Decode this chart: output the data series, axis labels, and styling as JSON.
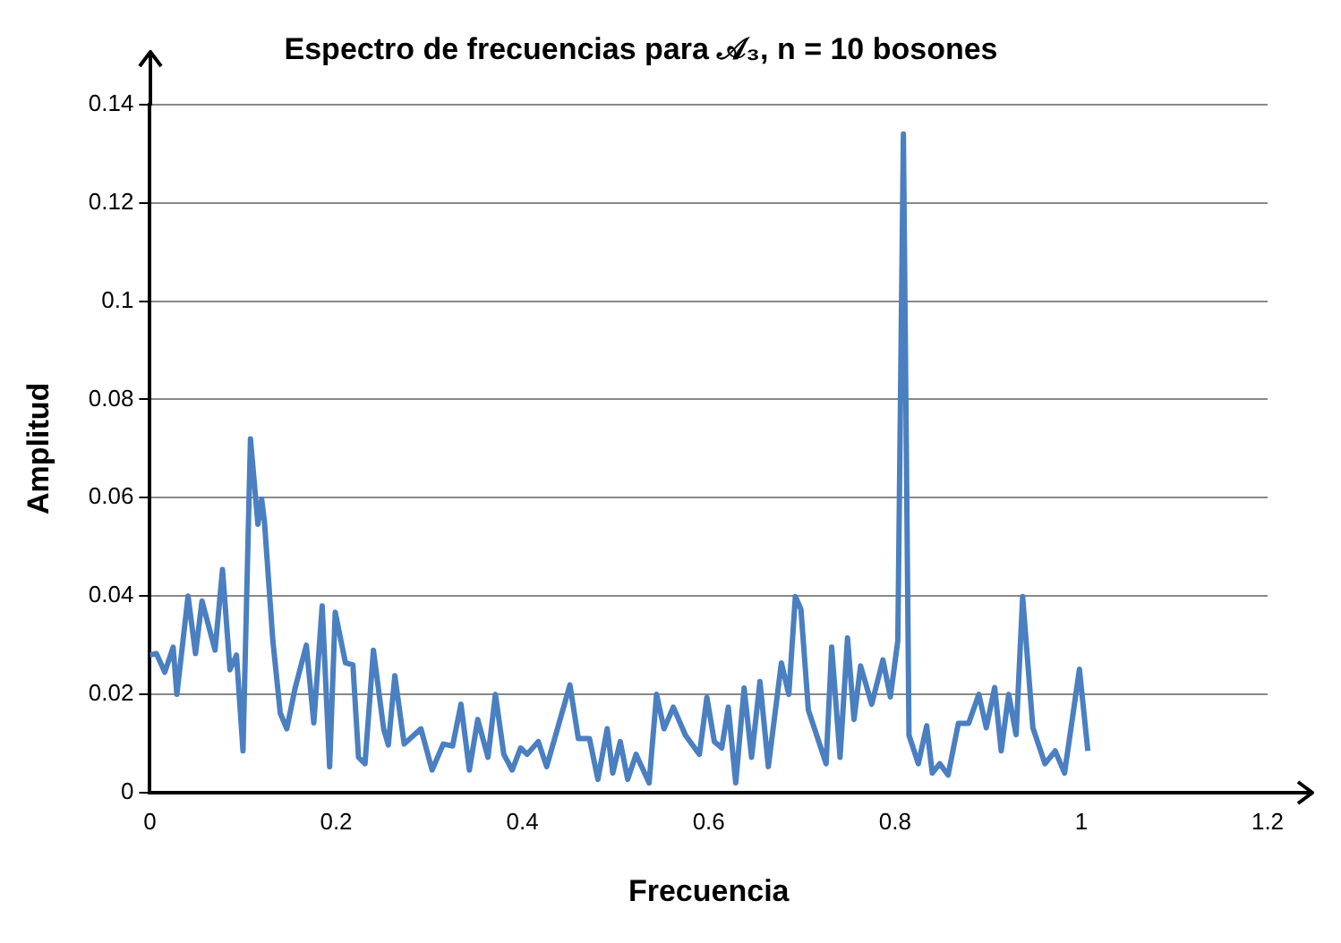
{
  "chart_data": {
    "type": "line",
    "title": "Espectro de frecuencias para 𝒜₃, n = 10 bosones",
    "xlabel": "Frecuencia",
    "ylabel": "Amplitud",
    "x": [
      0,
      0.007,
      0.016,
      0.025,
      0.029,
      0.041,
      0.049,
      0.056,
      0.07,
      0.078,
      0.086,
      0.093,
      0.1,
      0.108,
      0.116,
      0.12,
      0.123,
      0.132,
      0.14,
      0.147,
      0.156,
      0.168,
      0.176,
      0.185,
      0.193,
      0.199,
      0.21,
      0.218,
      0.224,
      0.231,
      0.24,
      0.251,
      0.256,
      0.263,
      0.273,
      0.291,
      0.303,
      0.315,
      0.325,
      0.334,
      0.343,
      0.352,
      0.363,
      0.371,
      0.38,
      0.389,
      0.398,
      0.405,
      0.417,
      0.426,
      0.451,
      0.46,
      0.472,
      0.481,
      0.491,
      0.497,
      0.505,
      0.513,
      0.522,
      0.536,
      0.544,
      0.552,
      0.562,
      0.575,
      0.59,
      0.598,
      0.606,
      0.614,
      0.621,
      0.629,
      0.638,
      0.646,
      0.655,
      0.664,
      0.678,
      0.686,
      0.693,
      0.699,
      0.707,
      0.726,
      0.732,
      0.741,
      0.749,
      0.756,
      0.763,
      0.775,
      0.787,
      0.795,
      0.803,
      0.809,
      0.815,
      0.825,
      0.834,
      0.84,
      0.848,
      0.857,
      0.868,
      0.879,
      0.89,
      0.898,
      0.907,
      0.914,
      0.922,
      0.93,
      0.937,
      0.948,
      0.961,
      0.972,
      0.982,
      0.998,
      1.007
    ],
    "series": [
      {
        "color": "#4a7fc1",
        "values": [
          0.028,
          0.0283,
          0.0245,
          0.0296,
          0.02,
          0.04,
          0.0283,
          0.039,
          0.029,
          0.0454,
          0.025,
          0.028,
          0.0085,
          0.072,
          0.0546,
          0.0597,
          0.0552,
          0.031,
          0.0162,
          0.013,
          0.0213,
          0.03,
          0.0142,
          0.038,
          0.0053,
          0.0367,
          0.0264,
          0.026,
          0.0072,
          0.0059,
          0.029,
          0.013,
          0.0097,
          0.0238,
          0.0099,
          0.013,
          0.0046,
          0.0099,
          0.0095,
          0.018,
          0.0046,
          0.0149,
          0.0072,
          0.02,
          0.0078,
          0.0046,
          0.0091,
          0.0078,
          0.0104,
          0.0053,
          0.0219,
          0.011,
          0.011,
          0.0027,
          0.013,
          0.004,
          0.0104,
          0.0027,
          0.0078,
          0.002,
          0.02,
          0.013,
          0.0174,
          0.0117,
          0.0078,
          0.0194,
          0.0104,
          0.0091,
          0.0174,
          0.002,
          0.0213,
          0.0072,
          0.0226,
          0.0053,
          0.0264,
          0.02,
          0.0399,
          0.0373,
          0.0168,
          0.0059,
          0.0296,
          0.0072,
          0.0315,
          0.0149,
          0.0258,
          0.018,
          0.027,
          0.0195,
          0.0309,
          0.134,
          0.0117,
          0.0059,
          0.0136,
          0.004,
          0.0059,
          0.0036,
          0.0141,
          0.0141,
          0.02,
          0.0132,
          0.0214,
          0.0085,
          0.02,
          0.0118,
          0.0399,
          0.0132,
          0.0059,
          0.0085,
          0.004,
          0.0251,
          0.0085
        ]
      }
    ],
    "xlim": [
      0,
      1.2
    ],
    "xticks": [
      0,
      0.2,
      0.4,
      0.6,
      0.8,
      1,
      1.2
    ],
    "ylim": [
      0,
      0.14
    ],
    "yticks": [
      0,
      0.02,
      0.04,
      0.06,
      0.08,
      0.1,
      0.12,
      0.14
    ],
    "grid": "y",
    "legend": false,
    "marker": "none",
    "line_style": "solid"
  }
}
